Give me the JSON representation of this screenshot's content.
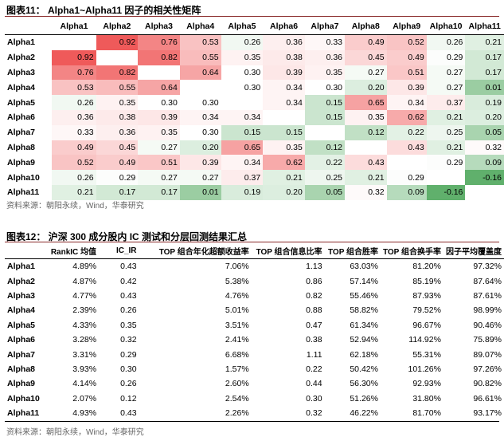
{
  "fig11": {
    "title": "图表11： Alpha1~Alpha11 因子的相关性矩阵",
    "source": "资料来源：朝阳永续，Wind，华泰研究",
    "columns": [
      "Alpha1",
      "Alpha2",
      "Alpha3",
      "Alpha4",
      "Alpha5",
      "Alpha6",
      "Alpha7",
      "Alpha8",
      "Alpha9",
      "Alpha10",
      "Alpha11"
    ],
    "rows": [
      {
        "label": "Alpha1",
        "cells": [
          "",
          "0.92",
          "0.76",
          "0.53",
          "0.26",
          "0.36",
          "0.33",
          "0.49",
          "0.52",
          "0.26",
          "0.21"
        ]
      },
      {
        "label": "Alpha2",
        "cells": [
          "0.92",
          "",
          "0.82",
          "0.55",
          "0.35",
          "0.38",
          "0.36",
          "0.45",
          "0.49",
          "0.29",
          "0.17"
        ]
      },
      {
        "label": "Alpha3",
        "cells": [
          "0.76",
          "0.82",
          "",
          "0.64",
          "0.30",
          "0.39",
          "0.35",
          "0.27",
          "0.51",
          "0.27",
          "0.17"
        ]
      },
      {
        "label": "Alpha4",
        "cells": [
          "0.53",
          "0.55",
          "0.64",
          "",
          "0.30",
          "0.34",
          "0.30",
          "0.20",
          "0.39",
          "0.27",
          "0.01"
        ]
      },
      {
        "label": "Alpha5",
        "cells": [
          "0.26",
          "0.35",
          "0.30",
          "0.30",
          "",
          "0.34",
          "0.15",
          "0.65",
          "0.34",
          "0.37",
          "0.19"
        ]
      },
      {
        "label": "Alpha6",
        "cells": [
          "0.36",
          "0.38",
          "0.39",
          "0.34",
          "0.34",
          "",
          "0.15",
          "0.35",
          "0.62",
          "0.21",
          "0.20"
        ]
      },
      {
        "label": "Alpha7",
        "cells": [
          "0.33",
          "0.36",
          "0.35",
          "0.30",
          "0.15",
          "0.15",
          "",
          "0.12",
          "0.22",
          "0.25",
          "0.05"
        ]
      },
      {
        "label": "Alpha8",
        "cells": [
          "0.49",
          "0.45",
          "0.27",
          "0.20",
          "0.65",
          "0.35",
          "0.12",
          "",
          "0.43",
          "0.21",
          "0.32"
        ]
      },
      {
        "label": "Alpha9",
        "cells": [
          "0.52",
          "0.49",
          "0.51",
          "0.39",
          "0.34",
          "0.62",
          "0.22",
          "0.43",
          "",
          "0.29",
          "0.09"
        ]
      },
      {
        "label": "Alpha10",
        "cells": [
          "0.26",
          "0.29",
          "0.27",
          "0.27",
          "0.37",
          "0.21",
          "0.25",
          "0.21",
          "0.29",
          "",
          "-0.16"
        ]
      },
      {
        "label": "Alpha11",
        "cells": [
          "0.21",
          "0.17",
          "0.17",
          "0.01",
          "0.19",
          "0.20",
          "0.05",
          "0.32",
          "0.09",
          "-0.16",
          ""
        ]
      }
    ]
  },
  "fig12": {
    "title": "图表12： 沪深 300 成分股内 IC 测试和分层回测结果汇总",
    "source": "资料来源：朝阳永续，Wind，华泰研究",
    "columns": [
      "",
      "RankIC 均值",
      "IC_IR",
      "TOP 组合年化超额收益率",
      "TOP 组合信息比率",
      "TOP 组合胜率",
      "TOP 组合换手率",
      "因子平均覆盖度"
    ],
    "rows": [
      {
        "label": "Alpha1",
        "cells": [
          "4.89%",
          "0.43",
          "7.06%",
          "1.13",
          "63.03%",
          "81.20%",
          "97.32%"
        ]
      },
      {
        "label": "Alpha2",
        "cells": [
          "4.87%",
          "0.42",
          "5.38%",
          "0.86",
          "57.14%",
          "85.19%",
          "87.64%"
        ]
      },
      {
        "label": "Alpha3",
        "cells": [
          "4.77%",
          "0.43",
          "4.76%",
          "0.82",
          "55.46%",
          "87.93%",
          "87.61%"
        ]
      },
      {
        "label": "Alpha4",
        "cells": [
          "2.39%",
          "0.26",
          "5.01%",
          "0.88",
          "58.82%",
          "79.52%",
          "98.99%"
        ]
      },
      {
        "label": "Alpha5",
        "cells": [
          "4.33%",
          "0.35",
          "3.51%",
          "0.47",
          "61.34%",
          "96.67%",
          "90.46%"
        ]
      },
      {
        "label": "Alpha6",
        "cells": [
          "3.28%",
          "0.32",
          "2.41%",
          "0.38",
          "52.94%",
          "114.92%",
          "75.89%"
        ]
      },
      {
        "label": "Alpha7",
        "cells": [
          "3.31%",
          "0.29",
          "6.68%",
          "1.11",
          "62.18%",
          "55.31%",
          "89.07%"
        ]
      },
      {
        "label": "Alpha8",
        "cells": [
          "3.93%",
          "0.30",
          "1.57%",
          "0.22",
          "50.42%",
          "101.26%",
          "97.26%"
        ]
      },
      {
        "label": "Alpha9",
        "cells": [
          "4.14%",
          "0.26",
          "2.60%",
          "0.44",
          "56.30%",
          "92.93%",
          "90.82%"
        ]
      },
      {
        "label": "Alpha10",
        "cells": [
          "2.07%",
          "0.12",
          "2.54%",
          "0.30",
          "51.26%",
          "31.80%",
          "96.61%"
        ]
      },
      {
        "label": "Alpha11",
        "cells": [
          "4.93%",
          "0.43",
          "2.26%",
          "0.32",
          "46.22%",
          "81.70%",
          "93.17%"
        ]
      }
    ]
  }
}
